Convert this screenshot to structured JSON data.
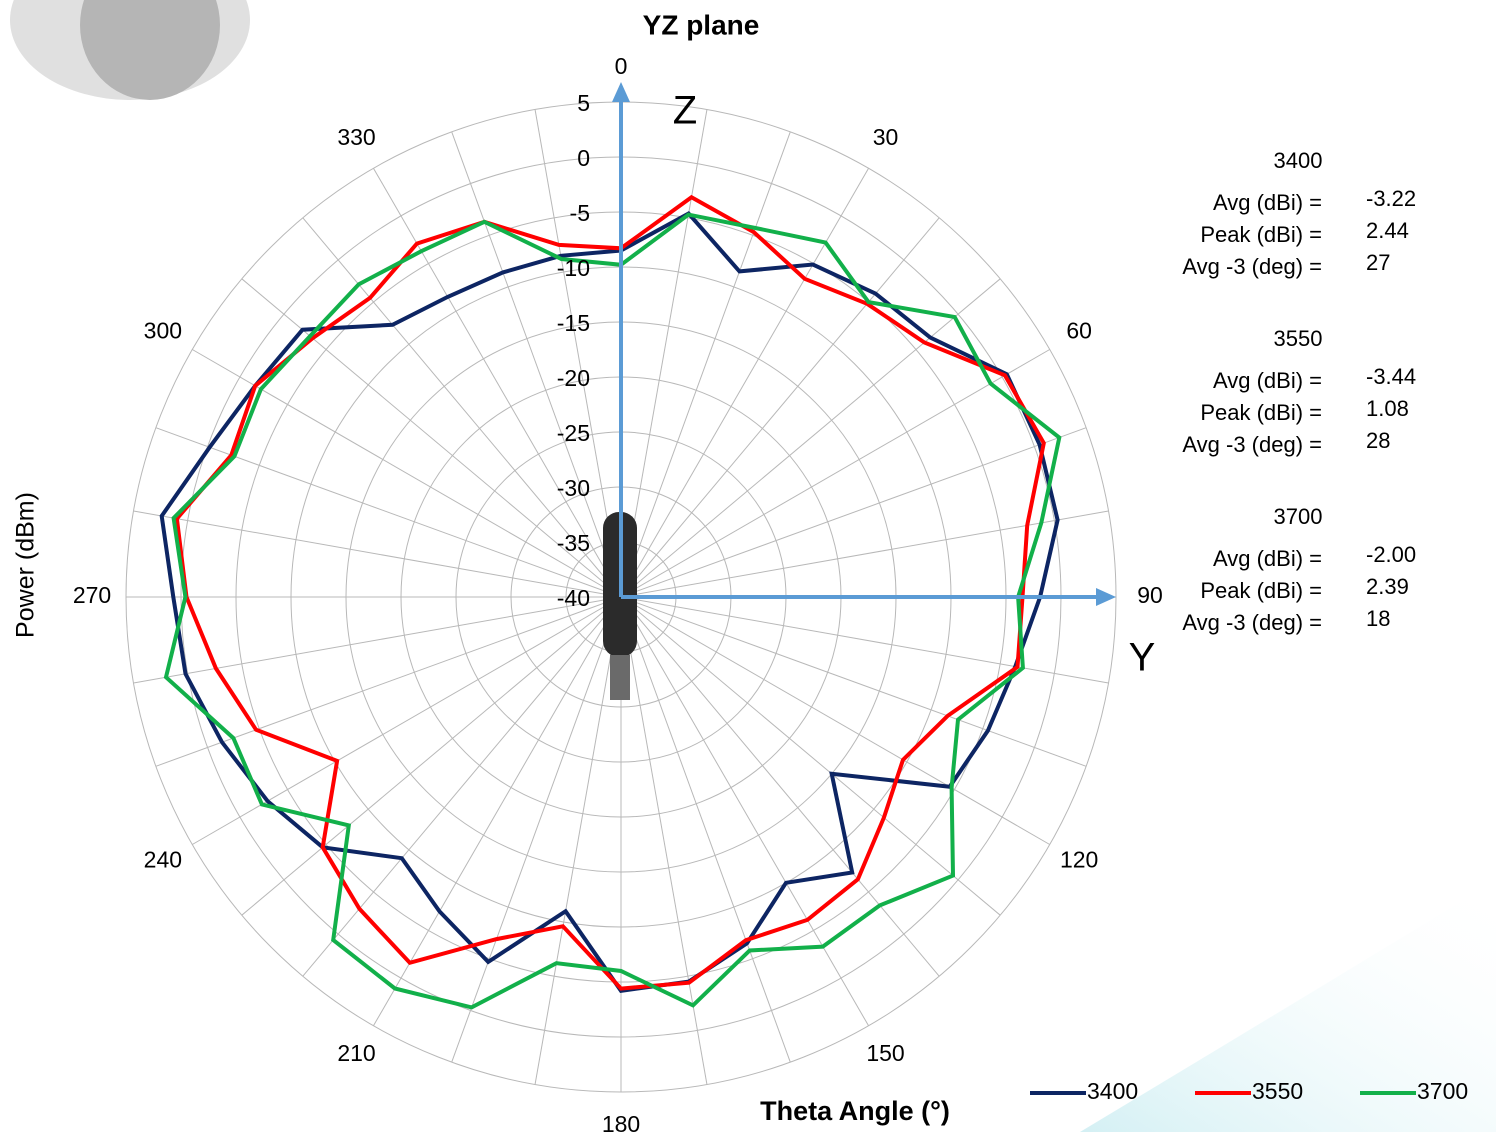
{
  "chart_data": {
    "type": "polar_line",
    "title": "YZ plane",
    "ylabel": "Power (dBm)",
    "xlabel": "Theta  Angle (°)",
    "annotations": [
      "Z",
      "Y"
    ],
    "x": [
      0,
      10,
      20,
      30,
      40,
      50,
      60,
      70,
      80,
      90,
      100,
      110,
      120,
      130,
      140,
      150,
      160,
      170,
      180,
      190,
      200,
      210,
      220,
      230,
      240,
      250,
      260,
      270,
      280,
      290,
      300,
      310,
      320,
      330,
      340,
      350
    ],
    "xticks": [
      0,
      30,
      60,
      90,
      120,
      150,
      180,
      210,
      240,
      270,
      300,
      330
    ],
    "ylim": [
      -40,
      5
    ],
    "yticks": [
      -40,
      -35,
      -30,
      -25,
      -20,
      -15,
      -10,
      -5,
      0,
      5
    ],
    "grid": true,
    "series": [
      {
        "name": "3400",
        "color": "#0d2563",
        "values": [
          -8.5,
          -4.6,
          -8.5,
          -5.1,
          -4,
          -3.3,
          0.5,
          0.5,
          0.3,
          -1.9,
          -3.6,
          -4.5,
          -5.5,
          -15,
          -7.3,
          -10,
          -6.5,
          -4.5,
          -4.2,
          -11,
          -4.7,
          -7,
          -9,
          -4.6,
          -2.9,
          -1.4,
          0.2,
          0.7,
          2.4,
          -0.2,
          -1.6,
          -2.2,
          -7.7,
          -8.5,
          -8.6,
          -8.5
        ]
      },
      {
        "name": "3550",
        "color": "#ff0000",
        "values": [
          -8.3,
          -3.1,
          -4.7,
          -6.6,
          -5.2,
          -4,
          0.3,
          0.9,
          -2.5,
          -3.5,
          -3.4,
          -8.4,
          -10.4,
          -8.8,
          -6.5,
          -6.1,
          -6.8,
          -4.4,
          -4.4,
          -9.6,
          -6.9,
          -1.6,
          -3,
          -4.6,
          -10.2,
          -4.7,
          -2.6,
          -0.5,
          1,
          -2.3,
          -1.6,
          -3.4,
          -4.5,
          -2.9,
          -3.7,
          -7.5
        ]
      },
      {
        "name": "3700",
        "color": "#12b04a",
        "values": [
          -9.8,
          -4.7,
          -4.3,
          -2.8,
          -5,
          -0.4,
          -1.2,
          2.4,
          -1.2,
          -3.9,
          -2.9,
          -7.4,
          -5.3,
          -0.6,
          -3.4,
          -3.3,
          -5.8,
          -2.3,
          -6,
          -6.2,
          -0.3,
          1.1,
          0.7,
          -7.7,
          -2.3,
          -2.5,
          2,
          -0.4,
          1.3,
          -2.6,
          -2.2,
          -3.1,
          -2.9,
          -3.7,
          -3.7,
          -8.8
        ]
      }
    ],
    "stat_labels": [
      "Avg (dBi) =",
      "Peak (dBi) =",
      "Avg -3 (deg) ="
    ],
    "stats": [
      [
        -3.22,
        2.44,
        27
      ],
      [
        -3.44,
        1.08,
        28
      ],
      [
        {
          "value": -2,
          "label": "-2.00"
        },
        2.39,
        18
      ]
    ]
  }
}
